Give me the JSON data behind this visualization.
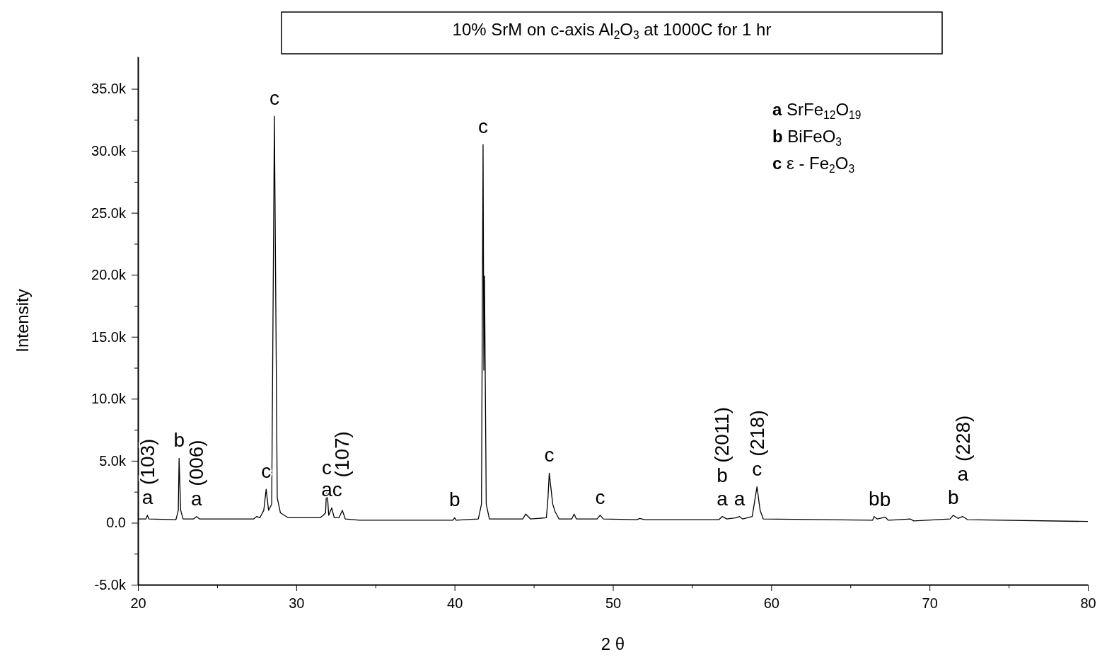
{
  "chart_data": {
    "type": "line",
    "title": "10% SrM on c-axis Al$_{2}$O$_{3}$ at 1000C for 1 hr",
    "xlabel": "2 θ",
    "ylabel": "Intensity",
    "xlim": [
      20,
      80
    ],
    "xticks": [
      20,
      {
        "value": 25,
        "label": null
      },
      30,
      {
        "value": 35,
        "label": null
      },
      40,
      {
        "value": 45,
        "label": null
      },
      50,
      {
        "value": 55,
        "label": null
      },
      60,
      {
        "value": 65,
        "label": null
      },
      70,
      {
        "value": 75,
        "label": null
      },
      80
    ],
    "ylim": [
      -5000,
      37600
    ],
    "yticks": [
      {
        "value": -5000,
        "label": "-5.0k"
      },
      {
        "value": -2500,
        "label": null
      },
      {
        "value": 0,
        "label": "0.0"
      },
      {
        "value": 2500,
        "label": null
      },
      {
        "value": 5000,
        "label": "5.0k"
      },
      {
        "value": 7500,
        "label": null
      },
      {
        "value": 10000,
        "label": "10.0k"
      },
      {
        "value": 12500,
        "label": null
      },
      {
        "value": 15000,
        "label": "15.0k"
      },
      {
        "value": 17500,
        "label": null
      },
      {
        "value": 20000,
        "label": "20.0k"
      },
      {
        "value": 22500,
        "label": null
      },
      {
        "value": 25000,
        "label": "25.0k"
      },
      {
        "value": 27500,
        "label": null
      },
      {
        "value": 30000,
        "label": "30.0k"
      },
      {
        "value": 32500,
        "label": null
      },
      {
        "value": 35000,
        "label": "35.0k"
      }
    ],
    "grid": false,
    "marker": "none",
    "line_style": "solid",
    "series": [
      {
        "color": "#000000",
        "x": [
          20.0,
          20.5,
          20.6,
          20.7,
          22.4,
          22.55,
          22.6,
          22.7,
          22.85,
          23.5,
          23.7,
          23.9,
          27.3,
          27.5,
          27.7,
          27.95,
          28.1,
          28.25,
          28.45,
          28.62,
          28.8,
          29.0,
          29.5,
          31.5,
          31.7,
          31.85,
          31.93,
          32.05,
          32.24,
          32.4,
          32.7,
          32.91,
          33.1,
          34.0,
          39.9,
          40.0,
          40.1,
          41.5,
          41.7,
          41.8,
          41.85,
          41.89,
          42.0,
          42.2,
          44.3,
          44.5,
          44.8,
          45.8,
          45.9,
          45.98,
          46.2,
          46.35,
          46.6,
          47.4,
          47.55,
          47.7,
          49.0,
          49.2,
          49.4,
          51.5,
          51.7,
          52.0,
          56.7,
          56.9,
          57.2,
          57.8,
          58.0,
          58.2,
          58.8,
          59.1,
          59.3,
          59.5,
          66.4,
          66.5,
          66.7,
          67.2,
          67.4,
          68.8,
          69.0,
          71.3,
          71.5,
          71.8,
          72.1,
          72.4,
          80.0
        ],
        "values": [
          300,
          300,
          600,
          300,
          250,
          1000,
          5200,
          1000,
          300,
          300,
          500,
          300,
          300,
          500,
          400,
          1000,
          2700,
          1000,
          1500,
          32800,
          2000,
          800,
          400,
          400,
          600,
          800,
          3000,
          600,
          1200,
          400,
          400,
          1000,
          300,
          200,
          200,
          400,
          200,
          300,
          1500,
          30500,
          12300,
          19900,
          1500,
          300,
          300,
          700,
          300,
          400,
          2000,
          4000,
          1500,
          900,
          300,
          300,
          700,
          300,
          300,
          600,
          300,
          250,
          350,
          250,
          250,
          500,
          300,
          400,
          500,
          300,
          500,
          2900,
          1000,
          300,
          200,
          500,
          300,
          450,
          200,
          300,
          150,
          300,
          600,
          350,
          500,
          250,
          100
        ]
      }
    ],
    "annotations": [
      {
        "text": "a",
        "x": 20.6,
        "y": 600
      },
      {
        "text": "(103)",
        "x": 20.6,
        "y": 600
      },
      {
        "text": "b",
        "x": 22.6,
        "y": 5200
      },
      {
        "text": "a",
        "x": 23.7,
        "y": 500
      },
      {
        "text": "(006)",
        "x": 23.7,
        "y": 500
      },
      {
        "text": "c",
        "x": 28.1,
        "y": 2700
      },
      {
        "text": "c",
        "x": 28.62,
        "y": 32800
      },
      {
        "text": "c",
        "x": 31.93,
        "y": 3000
      },
      {
        "text": "ac",
        "x": 32.24,
        "y": 1200
      },
      {
        "text": "(107)",
        "x": 32.91,
        "y": 1000
      },
      {
        "text": "b",
        "x": 40.0,
        "y": 400
      },
      {
        "text": "c",
        "x": 41.8,
        "y": 30500
      },
      {
        "text": "c",
        "x": 45.98,
        "y": 4000
      },
      {
        "text": "c",
        "x": 49.2,
        "y": 600
      },
      {
        "text": "a",
        "x": 56.9,
        "y": 500
      },
      {
        "text": "b",
        "x": 56.9,
        "y": 500
      },
      {
        "text": "(2011)",
        "x": 56.9,
        "y": 500
      },
      {
        "text": "a",
        "x": 58.0,
        "y": 500
      },
      {
        "text": "c",
        "x": 59.1,
        "y": 2900
      },
      {
        "text": "(218)",
        "x": 59.1,
        "y": 2900
      },
      {
        "text": "b",
        "x": 66.5,
        "y": 500
      },
      {
        "text": "b",
        "x": 67.2,
        "y": 450
      },
      {
        "text": "b",
        "x": 71.5,
        "y": 600
      },
      {
        "text": "a",
        "x": 72.1,
        "y": 500
      },
      {
        "text": "(228)",
        "x": 72.1,
        "y": 500
      },
      "a SrFe$_{12}$O$_{19}$",
      "b BiFeO$_{3}$",
      "c ε - Fe$_{2}$O$_{3}$"
    ]
  }
}
